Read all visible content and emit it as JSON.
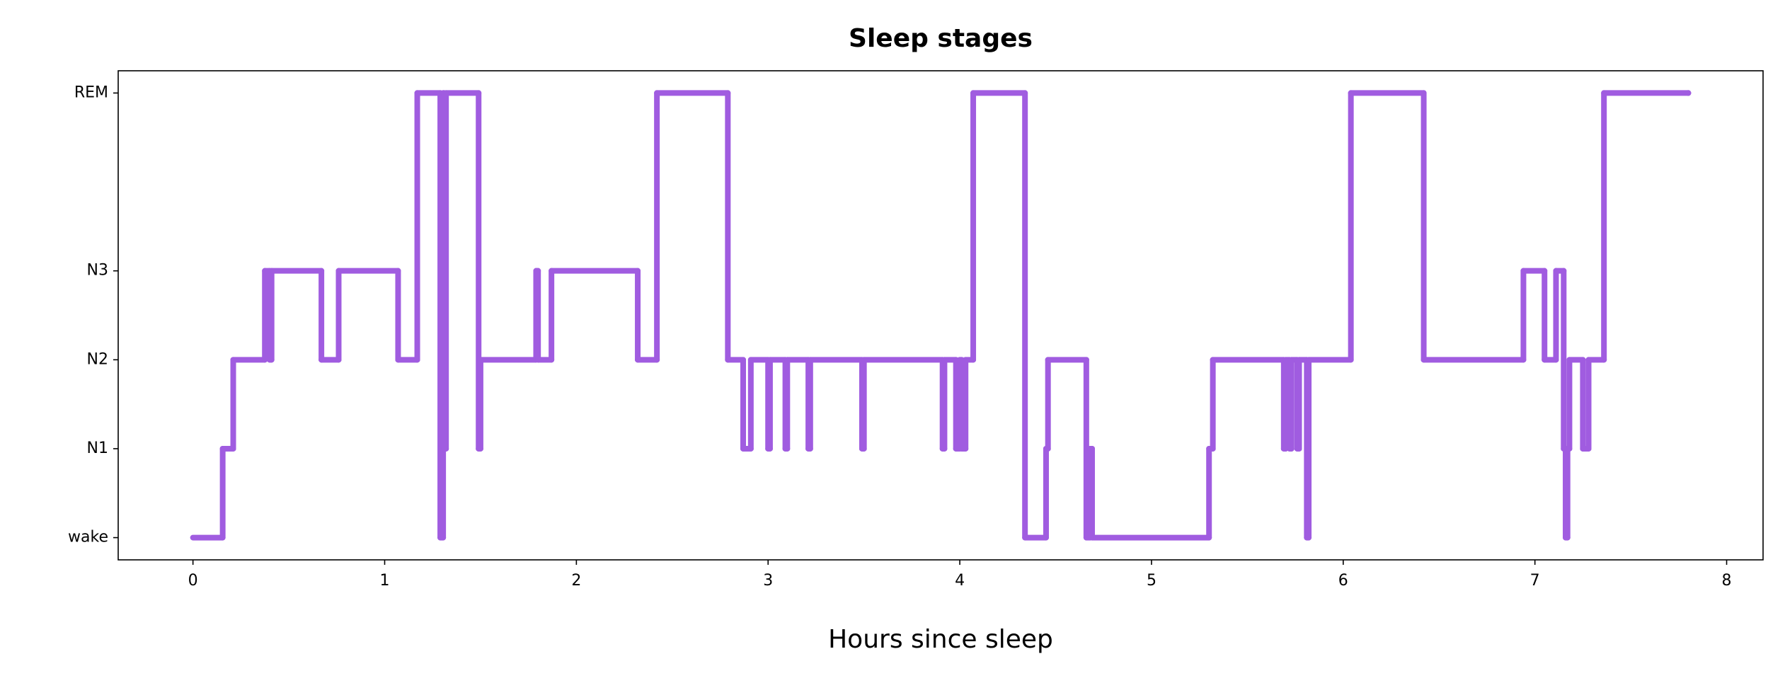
{
  "chart_data": {
    "type": "line",
    "step": "post",
    "title": "Sleep stages",
    "x_label": "Hours since sleep",
    "color": "#a05ce0",
    "x": [
      0,
      0.155,
      0.21,
      0.375,
      0.4,
      0.41,
      0.67,
      0.76,
      1.07,
      1.17,
      1.29,
      1.305,
      1.31,
      1.32,
      1.49,
      1.5,
      1.79,
      1.8,
      1.87,
      2.32,
      2.42,
      2.79,
      2.87,
      2.91,
      3.0,
      3.01,
      3.09,
      3.1,
      3.21,
      3.22,
      3.49,
      3.5,
      3.91,
      3.92,
      3.98,
      4.0,
      4.01,
      4.03,
      4.07,
      4.34,
      4.45,
      4.46,
      4.66,
      4.68,
      4.69,
      5.3,
      5.32,
      5.69,
      5.7,
      5.72,
      5.73,
      5.76,
      5.77,
      5.81,
      5.82,
      6.04,
      6.42,
      6.94,
      7.05,
      7.11,
      7.15,
      7.16,
      7.17,
      7.18,
      7.25,
      7.28,
      7.36,
      7.8
    ],
    "values": [
      0,
      1,
      2,
      3,
      2,
      3,
      2,
      3,
      2,
      5,
      0,
      5,
      1,
      5,
      1,
      2,
      3,
      2,
      3,
      2,
      5,
      2,
      1,
      2,
      1,
      2,
      1,
      2,
      1,
      2,
      1,
      2,
      1,
      2,
      1,
      2,
      1,
      2,
      5,
      0,
      1,
      2,
      0,
      1,
      0,
      1,
      2,
      1,
      2,
      1,
      2,
      1,
      2,
      0,
      2,
      5,
      2,
      3,
      2,
      3,
      1,
      0,
      1,
      2,
      1,
      2,
      5,
      5
    ],
    "xlim": [
      -0.39,
      8.19
    ],
    "xticks": [
      0,
      1,
      2,
      3,
      4,
      5,
      6,
      7,
      8
    ],
    "ylim": [
      -0.25,
      5.25
    ],
    "yticks": [
      {
        "value": 0,
        "label": "wake"
      },
      {
        "value": 1,
        "label": "N1"
      },
      {
        "value": 2,
        "label": "N2"
      },
      {
        "value": 3,
        "label": "N3"
      },
      {
        "value": 5,
        "label": "REM"
      }
    ],
    "grid": false
  }
}
